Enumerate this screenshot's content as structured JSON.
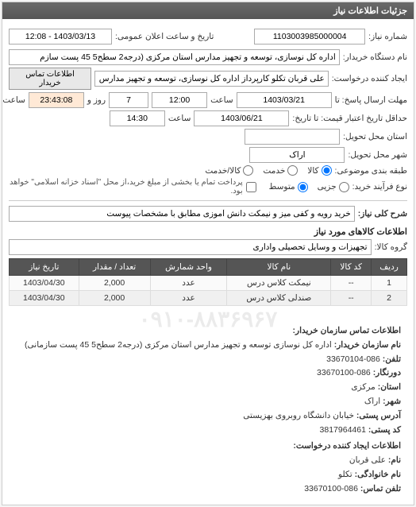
{
  "panel": {
    "title": "جزئیات اطلاعات نیاز"
  },
  "header": {
    "req_no_label": "شماره نیاز:",
    "req_no": "1103003985000004",
    "announce_label": "تاریخ و ساعت اعلان عمومی:",
    "announce_value": "1403/03/13 - 12:08",
    "buyer_org_label": "نام دستگاه خریدار:",
    "buyer_org": "اداره کل نوسازی، توسعه و تجهیز مدارس استان مرکزی (درجه2 سطح5 45 پست سازم",
    "creator_label": "ایجاد کننده درخواست:",
    "creator": "علی قربان تکلو کارپرداز اداره کل نوسازی، توسعه و تجهیز مدارس استان مرکزی",
    "contact_btn": "اطلاعات تماس خریدار"
  },
  "deadlines": {
    "reply_until_label": "مهلت ارسال پاسخ: تا",
    "reply_date": "1403/03/21",
    "time_label": "ساعت",
    "reply_time": "12:00",
    "days_label": "روز و",
    "days_left": "7",
    "remain_label": "ساعت باقی مانده",
    "remain_time": "23:43:08",
    "valid_until_label": "حداقل تاریخ اعتبار قیمت: تا تاریخ:",
    "valid_date": "1403/06/21",
    "valid_time": "14:30"
  },
  "delivery": {
    "province_label": "استان محل تحویل:",
    "province": "",
    "city_label": "شهر محل تحویل:",
    "city": "اراک"
  },
  "classification": {
    "label": "طبقه بندی موضوعی:",
    "opt_good": "کالا",
    "opt_service": "خدمت",
    "opt_both": "کالا/خدمت"
  },
  "contract": {
    "label": "نوع فرآیند خرید:",
    "opt_small": "جزیی",
    "opt_medium": "متوسط",
    "checkbox_label": "پرداخت تمام یا بخشی از مبلغ خرید،از محل \"اسناد خزانه اسلامی\" خواهد بود."
  },
  "description": {
    "label": "شرح کلی نیاز:",
    "value": "خرید رویه و کفی میز و نیمکت دانش آموزی مطابق با مشخصات پیوست"
  },
  "goods": {
    "section_title": "اطلاعات کالاهای مورد نیاز",
    "group_label": "گروه کالا:",
    "group_value": "تجهیزات و وسایل تحصیلی واداری",
    "columns": {
      "row": "ردیف",
      "code": "کد کالا",
      "name": "نام کالا",
      "unit": "واحد شمارش",
      "qty": "تعداد / مقدار",
      "need_date": "تاریخ نیاز"
    },
    "rows": [
      {
        "row": "1",
        "code": "--",
        "name": "نیمکت کلاس درس",
        "unit": "عدد",
        "qty": "2,000",
        "need_date": "1403/04/30"
      },
      {
        "row": "2",
        "code": "--",
        "name": "صندلی کلاس درس",
        "unit": "عدد",
        "qty": "2,000",
        "need_date": "1403/04/30"
      }
    ]
  },
  "contact": {
    "title": "اطلاعات تماس سازمان خریدار:",
    "org_label": "نام سازمان خریدار:",
    "org": "اداره کل نوسازی توسعه و تجهیز مدارس استان مرکزی (درجه2 سطح5 45 پست سازمانی)",
    "tel_label": "تلفن:",
    "tel": "086-33670104",
    "fax_label": "دورنگار:",
    "fax": "086-33670100",
    "province_label": "استان:",
    "province": "مرکزی",
    "city_label": "شهر:",
    "city": "اراک",
    "addr_label": "آدرس پستی:",
    "addr": "خیابان دانشگاه روبروی بهزیستی",
    "zip_label": "کد پستی:",
    "zip": "3817964461",
    "creator_title": "اطلاعات ایجاد کننده درخواست:",
    "name_label": "نام:",
    "name": "علی قربان",
    "family_label": "نام خانوادگی:",
    "family": "تکلو",
    "phone_label": "تلفن تماس:",
    "phone": "086-33670100"
  },
  "watermark": "۰۹۱۰-۸۸۳۶۹۶۷"
}
